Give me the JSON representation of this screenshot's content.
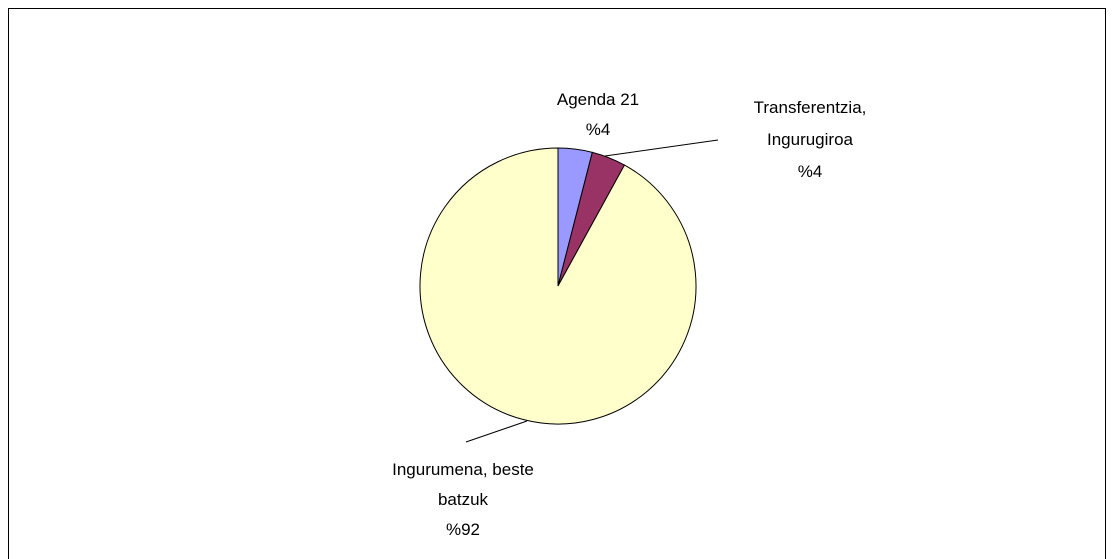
{
  "chart_data": {
    "type": "pie",
    "categories": [
      "Agenda 21",
      "Transferentzia, Ingurugiroa",
      "Ingurumena, beste batzuk"
    ],
    "values": [
      4,
      4,
      92
    ],
    "value_labels": [
      "%4",
      "%4",
      "%92"
    ],
    "colors": [
      "#9999ff",
      "#993366",
      "#ffffcc"
    ]
  }
}
